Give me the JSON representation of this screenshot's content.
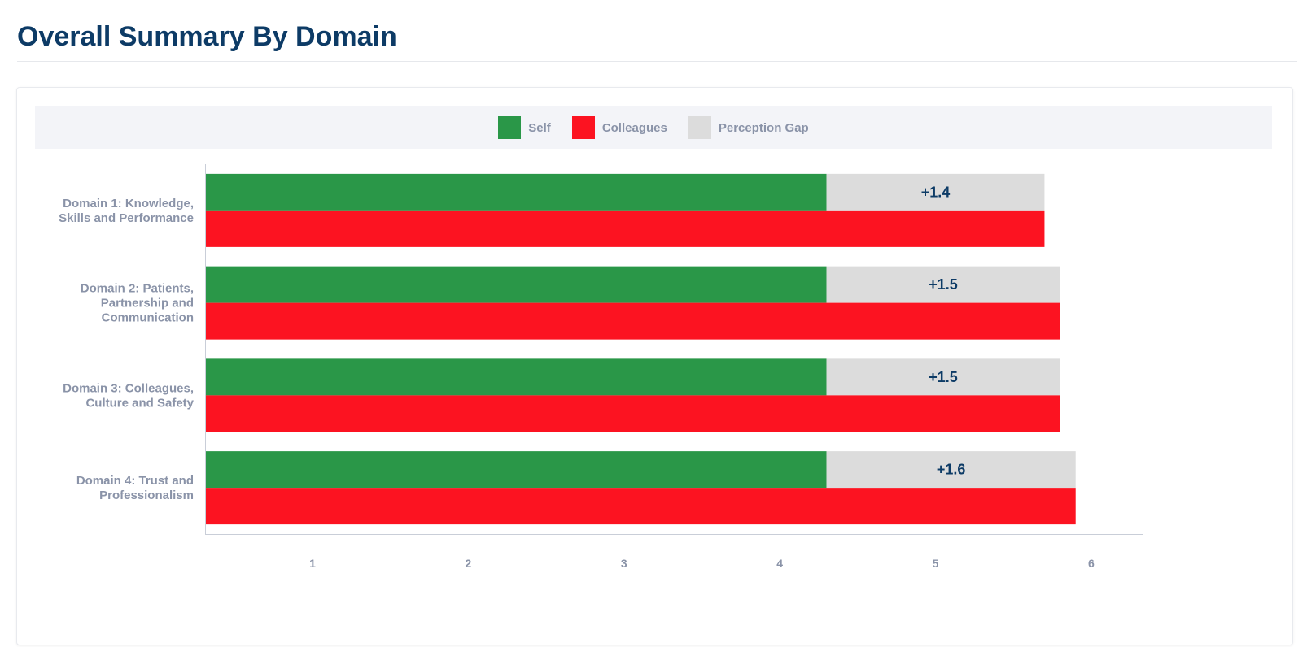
{
  "page": {
    "title": "Overall Summary By Domain"
  },
  "legend": {
    "items": [
      {
        "label": "Self",
        "color": "#2a9748"
      },
      {
        "label": "Colleagues",
        "color": "#fc1321"
      },
      {
        "label": "Perception Gap",
        "color": "#dcdcdc"
      }
    ]
  },
  "chart_data": {
    "type": "bar",
    "orientation": "horizontal",
    "stacked_gap": true,
    "categories": [
      [
        "Domain 1: Knowledge,",
        "Skills and Performance"
      ],
      [
        "Domain 2: Patients,",
        "Partnership and",
        "Communication"
      ],
      [
        "Domain 3: Colleagues,",
        "Culture and Safety"
      ],
      [
        "Domain 4: Trust and",
        "Professionalism"
      ]
    ],
    "series": [
      {
        "name": "Self",
        "color": "#2a9748",
        "values": [
          4.3,
          4.3,
          4.3,
          4.3
        ]
      },
      {
        "name": "Colleagues",
        "color": "#fc1321",
        "values": [
          5.7,
          5.8,
          5.8,
          5.9
        ]
      },
      {
        "name": "Perception Gap",
        "color": "#dcdcdc",
        "values": [
          1.4,
          1.5,
          1.5,
          1.6
        ]
      }
    ],
    "gap_labels": [
      "+1.4",
      "+1.5",
      "+1.5",
      "+1.6"
    ],
    "xticks": [
      1,
      2,
      3,
      4,
      5,
      6
    ],
    "xlim": [
      0.31,
      6.33
    ],
    "xlabel": "",
    "ylabel": "",
    "legend_position": "top",
    "grid": false
  }
}
